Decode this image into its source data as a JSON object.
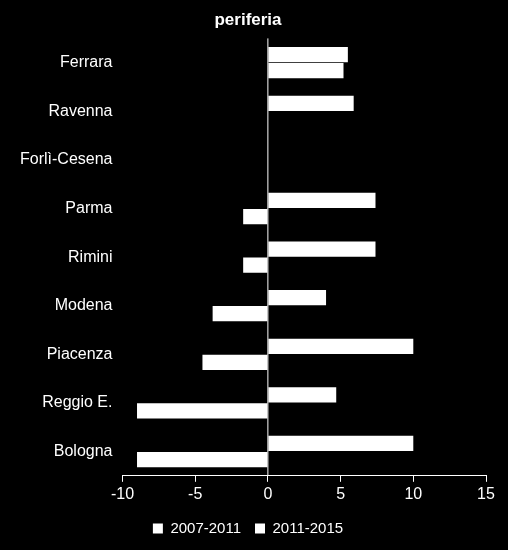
{
  "chart_data": {
    "type": "bar",
    "title": "periferia",
    "orientation": "horizontal",
    "categories": [
      "Ferrara",
      "Ravenna",
      "Forlì-Cesena",
      "Parma",
      "Rimini",
      "Modena",
      "Piacenza",
      "Reggio E.",
      "Bologna"
    ],
    "series": [
      {
        "name": "2007-2011",
        "color": "#ffffff",
        "values": [
          5.5,
          5.9,
          0,
          7.4,
          7.4,
          4.0,
          10.0,
          4.7,
          10.0
        ]
      },
      {
        "name": "2011-2015",
        "color": "#ffffff",
        "values": [
          5.2,
          0,
          0,
          -1.7,
          -1.7,
          -3.8,
          -4.5,
          -9.0,
          -9.0
        ]
      }
    ],
    "xlim": [
      -10,
      15
    ],
    "xticks": [
      -10,
      -5,
      0,
      5,
      10,
      15
    ],
    "grid": false,
    "legend": "bottom"
  }
}
